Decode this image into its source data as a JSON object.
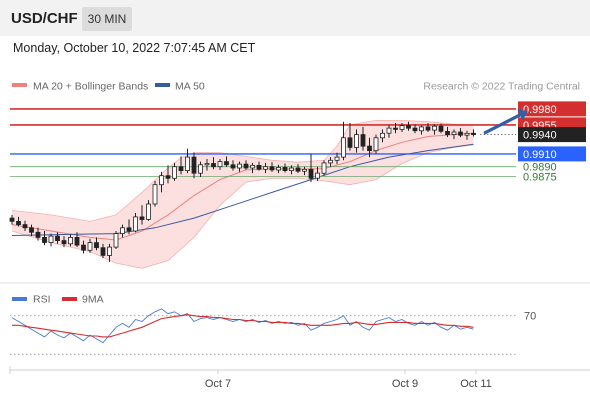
{
  "header": {
    "symbol": "USD/CHF",
    "timeframe": "30 MIN"
  },
  "datetime": "Monday, October 10, 2022 7:07:45 AM CET",
  "legend": [
    {
      "label": "MA 20 + Bollinger Bands",
      "color": "#f08080"
    },
    {
      "label": "MA 50",
      "color": "#3a5aa0"
    }
  ],
  "credit": "Research © 2022 Trading Central",
  "colors": {
    "up": "#ffffff",
    "down": "#222222",
    "resistance": "#d32f2f",
    "support_blue": "#2962ff",
    "support_green": "#2e7d32",
    "forecast_arrow": "#2f5fa8",
    "band_fill": "#fbdada"
  },
  "chart_data": [
    {
      "type": "candlestick",
      "ylim": [
        0.972,
        1.0
      ],
      "levels": [
        {
          "label": "0.9980",
          "value": 0.998,
          "kind": "resistance"
        },
        {
          "label": "0.9955",
          "value": 0.9955,
          "kind": "resistance"
        },
        {
          "label": "0.9940",
          "value": 0.994,
          "kind": "last"
        },
        {
          "label": "0.9910",
          "value": 0.991,
          "kind": "support"
        },
        {
          "label": "0.9890",
          "value": 0.989,
          "kind": "support-minor"
        },
        {
          "label": "0.9875",
          "value": 0.9875,
          "kind": "support-minor"
        }
      ],
      "x_ticks": [
        "Oct 7",
        "Oct 9",
        "Oct 11"
      ],
      "candles": [
        [
          0.981,
          0.9815,
          0.98,
          0.9805
        ],
        [
          0.9805,
          0.9812,
          0.9797,
          0.98
        ],
        [
          0.98,
          0.9806,
          0.979,
          0.9795
        ],
        [
          0.9795,
          0.98,
          0.9782,
          0.9788
        ],
        [
          0.9788,
          0.9795,
          0.9775,
          0.978
        ],
        [
          0.978,
          0.979,
          0.9768,
          0.9772
        ],
        [
          0.9772,
          0.9786,
          0.9766,
          0.9782
        ],
        [
          0.9782,
          0.9788,
          0.977,
          0.9775
        ],
        [
          0.9775,
          0.9782,
          0.9765,
          0.977
        ],
        [
          0.977,
          0.9785,
          0.9766,
          0.978
        ],
        [
          0.978,
          0.9788,
          0.9765,
          0.9768
        ],
        [
          0.9768,
          0.9775,
          0.9755,
          0.976
        ],
        [
          0.976,
          0.9778,
          0.9756,
          0.9772
        ],
        [
          0.9772,
          0.978,
          0.976,
          0.9764
        ],
        [
          0.9764,
          0.977,
          0.9748,
          0.9752
        ],
        [
          0.9752,
          0.977,
          0.9742,
          0.9765
        ],
        [
          0.9765,
          0.979,
          0.9762,
          0.9786
        ],
        [
          0.9786,
          0.98,
          0.978,
          0.9795
        ],
        [
          0.9795,
          0.9808,
          0.9785,
          0.979
        ],
        [
          0.979,
          0.9818,
          0.9788,
          0.9812
        ],
        [
          0.9812,
          0.983,
          0.98,
          0.9808
        ],
        [
          0.9808,
          0.9838,
          0.9806,
          0.9832
        ],
        [
          0.9832,
          0.9868,
          0.9828,
          0.9862
        ],
        [
          0.9862,
          0.9882,
          0.985,
          0.9876
        ],
        [
          0.9876,
          0.9892,
          0.9864,
          0.9872
        ],
        [
          0.9872,
          0.9896,
          0.9868,
          0.989
        ],
        [
          0.989,
          0.9906,
          0.9878,
          0.9884
        ],
        [
          0.9884,
          0.9918,
          0.988,
          0.9905
        ],
        [
          0.9905,
          0.9912,
          0.9872,
          0.988
        ],
        [
          0.988,
          0.9898,
          0.9874,
          0.9893
        ],
        [
          0.9893,
          0.9902,
          0.9884,
          0.9895
        ],
        [
          0.9895,
          0.9905,
          0.9886,
          0.989
        ],
        [
          0.989,
          0.9902,
          0.9885,
          0.9898
        ],
        [
          0.9898,
          0.9906,
          0.989,
          0.9893
        ],
        [
          0.9893,
          0.99,
          0.9884,
          0.9888
        ],
        [
          0.9888,
          0.9898,
          0.9882,
          0.9894
        ],
        [
          0.9894,
          0.99,
          0.9885,
          0.9888
        ],
        [
          0.9888,
          0.9896,
          0.988,
          0.9892
        ],
        [
          0.9892,
          0.9898,
          0.9884,
          0.9886
        ],
        [
          0.9886,
          0.9896,
          0.988,
          0.989
        ],
        [
          0.989,
          0.9897,
          0.9882,
          0.9885
        ],
        [
          0.9885,
          0.9893,
          0.988,
          0.9889
        ],
        [
          0.9889,
          0.9895,
          0.9881,
          0.9884
        ],
        [
          0.9884,
          0.9892,
          0.9878,
          0.9888
        ],
        [
          0.9888,
          0.9894,
          0.988,
          0.9883
        ],
        [
          0.9883,
          0.989,
          0.9877,
          0.9886
        ],
        [
          0.9886,
          0.991,
          0.9866,
          0.9872
        ],
        [
          0.9872,
          0.989,
          0.9868,
          0.988
        ],
        [
          0.988,
          0.99,
          0.9876,
          0.9896
        ],
        [
          0.9896,
          0.9905,
          0.989,
          0.99
        ],
        [
          0.99,
          0.9912,
          0.9894,
          0.9905
        ],
        [
          0.9905,
          0.996,
          0.99,
          0.9935
        ],
        [
          0.9935,
          0.9958,
          0.9915,
          0.992
        ],
        [
          0.992,
          0.9948,
          0.9912,
          0.994
        ],
        [
          0.994,
          0.9952,
          0.9915,
          0.9922
        ],
        [
          0.9922,
          0.9935,
          0.9905,
          0.9915
        ],
        [
          0.9915,
          0.994,
          0.991,
          0.9935
        ],
        [
          0.9935,
          0.9948,
          0.9928,
          0.9942
        ],
        [
          0.9942,
          0.9955,
          0.9935,
          0.995
        ],
        [
          0.995,
          0.9958,
          0.9942,
          0.9948
        ],
        [
          0.9948,
          0.9958,
          0.9944,
          0.9954
        ],
        [
          0.9954,
          0.996,
          0.9946,
          0.995
        ],
        [
          0.995,
          0.9956,
          0.9942,
          0.9946
        ],
        [
          0.9946,
          0.9954,
          0.994,
          0.9952
        ],
        [
          0.9952,
          0.9958,
          0.9944,
          0.9947
        ],
        [
          0.9947,
          0.9956,
          0.994,
          0.9953
        ],
        [
          0.9953,
          0.9957,
          0.9942,
          0.9945
        ],
        [
          0.9945,
          0.9952,
          0.9936,
          0.994
        ],
        [
          0.994,
          0.9948,
          0.9933,
          0.9944
        ],
        [
          0.9944,
          0.995,
          0.9936,
          0.9939
        ],
        [
          0.9939,
          0.9946,
          0.9932,
          0.9942
        ],
        [
          0.9942,
          0.9948,
          0.9937,
          0.994
        ]
      ],
      "ma20": [
        [
          0,
          0.98
        ],
        [
          6,
          0.979
        ],
        [
          12,
          0.978
        ],
        [
          16,
          0.9776
        ],
        [
          20,
          0.979
        ],
        [
          24,
          0.9815
        ],
        [
          28,
          0.9845
        ],
        [
          32,
          0.987
        ],
        [
          36,
          0.9885
        ],
        [
          40,
          0.9887
        ],
        [
          44,
          0.9886
        ],
        [
          48,
          0.9887
        ],
        [
          52,
          0.9898
        ],
        [
          56,
          0.9915
        ],
        [
          60,
          0.9928
        ],
        [
          64,
          0.9937
        ],
        [
          68,
          0.994
        ],
        [
          71,
          0.9942
        ]
      ],
      "bb_upper": [
        [
          0,
          0.9822
        ],
        [
          6,
          0.9815
        ],
        [
          12,
          0.9805
        ],
        [
          16,
          0.9815
        ],
        [
          20,
          0.985
        ],
        [
          24,
          0.9888
        ],
        [
          26,
          0.9904
        ],
        [
          28,
          0.9912
        ],
        [
          32,
          0.9912
        ],
        [
          36,
          0.9906
        ],
        [
          40,
          0.99
        ],
        [
          44,
          0.9897
        ],
        [
          48,
          0.99
        ],
        [
          50,
          0.9922
        ],
        [
          52,
          0.9955
        ],
        [
          56,
          0.9962
        ],
        [
          60,
          0.9962
        ],
        [
          64,
          0.996
        ],
        [
          68,
          0.9956
        ],
        [
          71,
          0.9955
        ]
      ],
      "bb_lower": [
        [
          0,
          0.979
        ],
        [
          6,
          0.9772
        ],
        [
          12,
          0.9758
        ],
        [
          16,
          0.974
        ],
        [
          20,
          0.9732
        ],
        [
          24,
          0.9744
        ],
        [
          28,
          0.978
        ],
        [
          32,
          0.983
        ],
        [
          36,
          0.9866
        ],
        [
          40,
          0.9872
        ],
        [
          44,
          0.9872
        ],
        [
          48,
          0.9868
        ],
        [
          52,
          0.9862
        ],
        [
          56,
          0.987
        ],
        [
          60,
          0.9895
        ],
        [
          64,
          0.9912
        ],
        [
          68,
          0.992
        ],
        [
          71,
          0.9924
        ]
      ],
      "ma50": [
        [
          0,
          0.9783
        ],
        [
          10,
          0.9785
        ],
        [
          16,
          0.9786
        ],
        [
          22,
          0.9795
        ],
        [
          28,
          0.981
        ],
        [
          34,
          0.983
        ],
        [
          40,
          0.985
        ],
        [
          46,
          0.987
        ],
        [
          52,
          0.989
        ],
        [
          58,
          0.9905
        ],
        [
          64,
          0.9915
        ],
        [
          71,
          0.9925
        ]
      ],
      "forecast": [
        [
          72,
          0.9942
        ],
        [
          80,
          0.998
        ]
      ]
    },
    {
      "type": "line",
      "legend": [
        {
          "label": "RSI",
          "color": "#4a78d6"
        },
        {
          "label": "9MA",
          "color": "#d32f2f"
        }
      ],
      "ylim": [
        20,
        80
      ],
      "levels": [
        {
          "label": "70",
          "value": 70
        }
      ],
      "series": [
        {
          "name": "RSI",
          "values": [
            68,
            64,
            60,
            56,
            52,
            48,
            54,
            50,
            47,
            52,
            48,
            44,
            50,
            46,
            42,
            50,
            58,
            62,
            58,
            66,
            64,
            70,
            74,
            77,
            72,
            74,
            70,
            72,
            64,
            67,
            68,
            66,
            68,
            66,
            64,
            66,
            64,
            66,
            63,
            65,
            62,
            64,
            62,
            63,
            60,
            62,
            55,
            58,
            62,
            64,
            66,
            70,
            60,
            64,
            58,
            55,
            64,
            66,
            68,
            64,
            66,
            62,
            60,
            64,
            60,
            63,
            58,
            55,
            60,
            56,
            58,
            56
          ]
        },
        {
          "name": "9MA",
          "values": [
            60,
            60,
            59,
            58,
            57,
            56,
            55,
            54,
            53,
            52,
            51,
            50,
            49,
            49,
            48,
            48,
            50,
            52,
            54,
            56,
            58,
            61,
            64,
            67,
            68,
            69,
            70,
            71,
            70,
            69,
            69,
            68,
            68,
            67,
            66,
            66,
            65,
            65,
            64,
            64,
            63,
            63,
            63,
            62,
            62,
            61,
            60,
            60,
            60,
            60,
            61,
            62,
            62,
            63,
            62,
            61,
            61,
            62,
            63,
            63,
            63,
            63,
            62,
            62,
            62,
            62,
            61,
            60,
            60,
            59,
            59,
            58
          ]
        }
      ]
    }
  ]
}
